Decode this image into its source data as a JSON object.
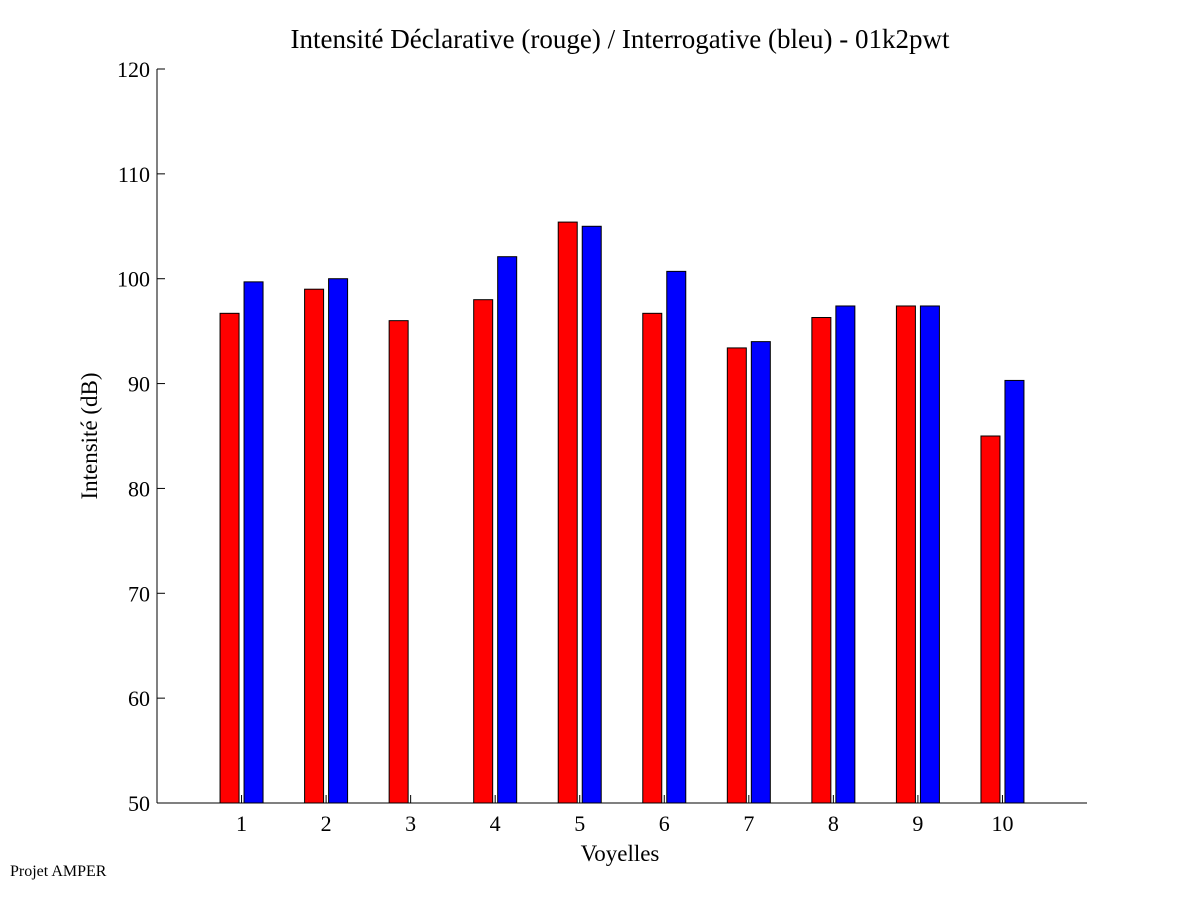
{
  "footer_text": "Projet AMPER",
  "colors": {
    "declarative": "#ff0000",
    "interrogative": "#0000ff",
    "axis": "#000000"
  },
  "chart_data": {
    "type": "bar",
    "title": "Intensité Déclarative (rouge) / Interrogative (bleu) - 01k2pwt",
    "xlabel": "Voyelles",
    "ylabel": "Intensité (dB)",
    "ylim": [
      50,
      120
    ],
    "yticks": [
      50,
      60,
      70,
      80,
      90,
      100,
      110,
      120
    ],
    "xlim": [
      0,
      11
    ],
    "categories": [
      "1",
      "2",
      "3",
      "4",
      "5",
      "6",
      "7",
      "8",
      "9",
      "10"
    ],
    "series": [
      {
        "name": "Déclarative (rouge)",
        "color": "#ff0000",
        "values": [
          96.7,
          99.0,
          96.0,
          98.0,
          105.4,
          96.7,
          93.4,
          96.3,
          97.4,
          85.0
        ]
      },
      {
        "name": "Interrogative (bleu)",
        "color": "#0000ff",
        "values": [
          99.7,
          100.0,
          null,
          102.1,
          105.0,
          100.7,
          94.0,
          97.4,
          97.4,
          90.3
        ]
      }
    ],
    "grid": false,
    "legend": "none"
  }
}
